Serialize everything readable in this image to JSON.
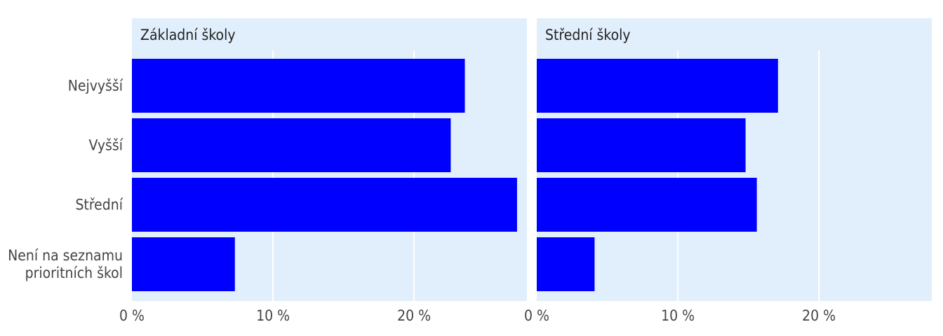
{
  "chart_data": {
    "type": "bar",
    "orientation": "horizontal",
    "categories": [
      "Nejvyšší",
      "Vyšší",
      "Střední",
      "Není na seznamu\nprioritních škol"
    ],
    "xlim": [
      0,
      28
    ],
    "x_ticks": [
      0,
      10,
      20
    ],
    "x_tick_labels": [
      "0 %",
      "10 %",
      "20 %"
    ],
    "grid": true,
    "legend": "none",
    "bar_color": "#0000ff",
    "panel_background": "#e1effd",
    "panels": [
      {
        "title": "Základní školy",
        "values": [
          23.6,
          22.6,
          27.3,
          7.3
        ]
      },
      {
        "title": "Střední školy",
        "values": [
          17.1,
          14.8,
          15.6,
          4.1
        ]
      }
    ]
  }
}
